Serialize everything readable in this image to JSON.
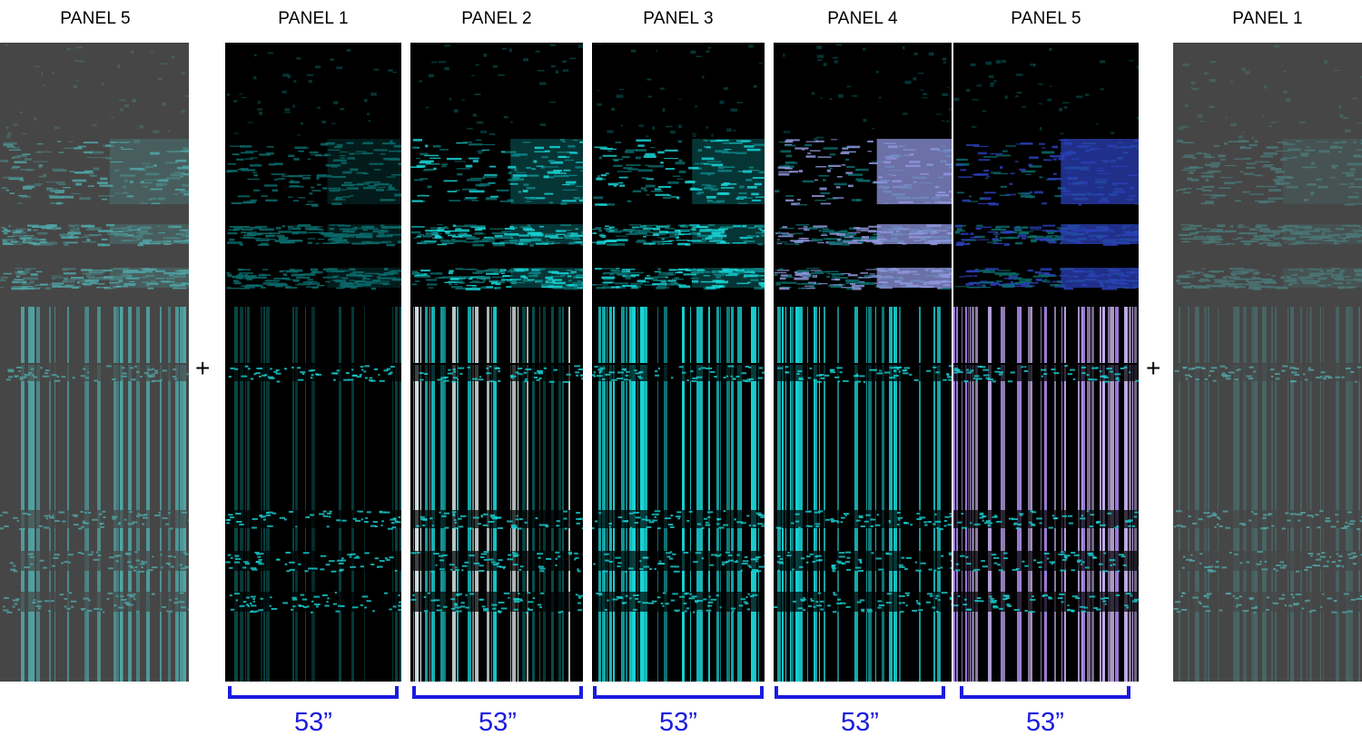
{
  "labels": [
    "PANEL 5",
    "PANEL 1",
    "PANEL 2",
    "PANEL 3",
    "PANEL 4",
    "PANEL 5",
    "PANEL 1"
  ],
  "plus": "+",
  "dimension": "53”",
  "colors": {
    "cyan": "#19d3d6",
    "teal": "#0a6a6a",
    "periwinkle": "#8f96dd",
    "blue": "#2b40b8",
    "lavender": "#c8b3ee",
    "purple": "#9a78d6",
    "black": "#000000",
    "bracket": "#1b1bdf"
  }
}
